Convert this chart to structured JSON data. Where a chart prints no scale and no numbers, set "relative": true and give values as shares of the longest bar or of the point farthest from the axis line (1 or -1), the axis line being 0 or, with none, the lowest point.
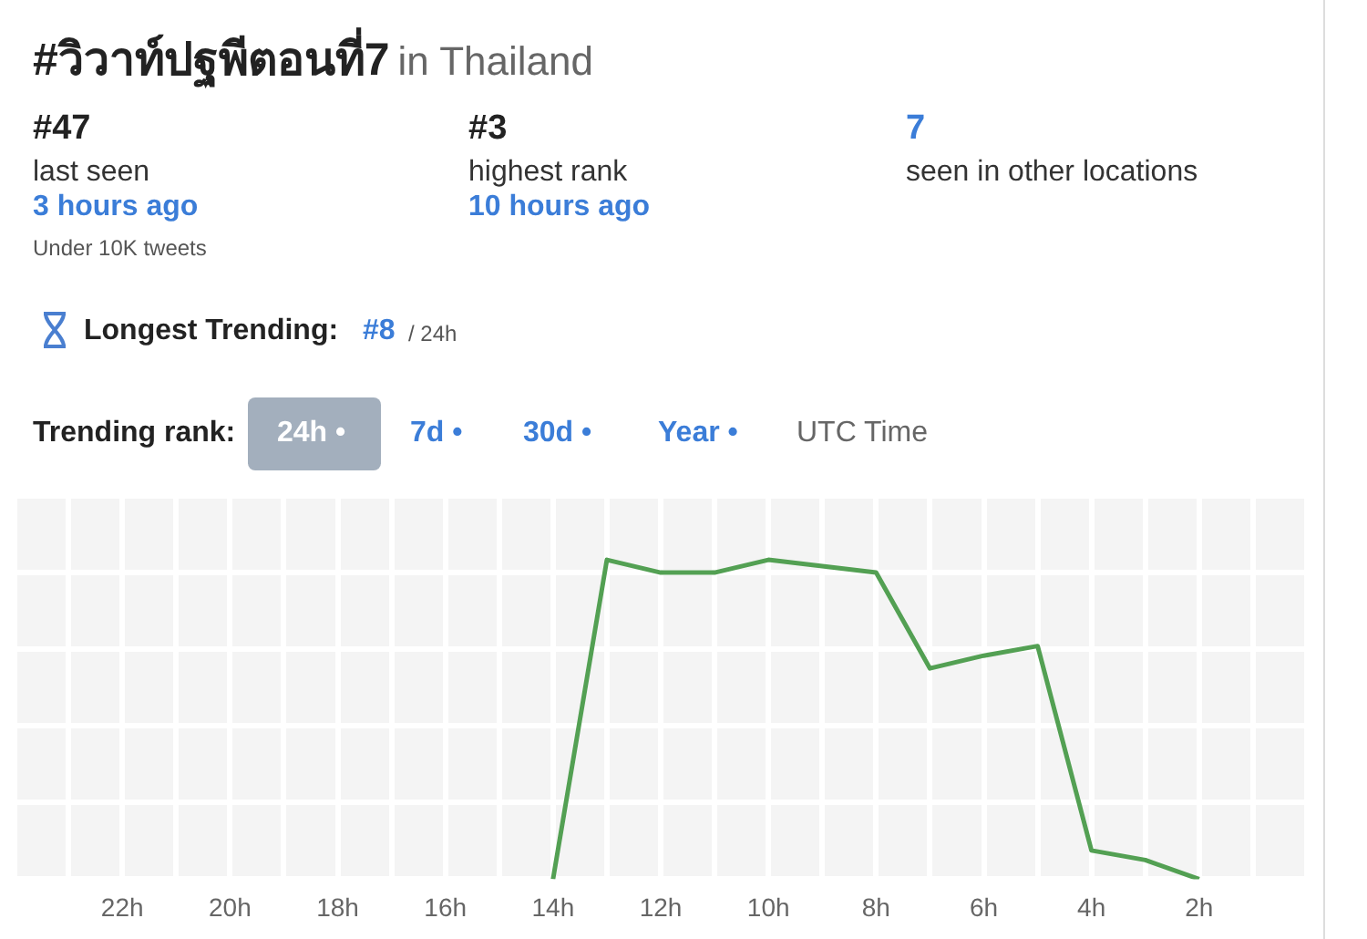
{
  "chart_data": {
    "type": "line",
    "title": "#วิวาท์ปฐพีตอนที่7",
    "subtitle": "in Thailand",
    "annotations": [
      "#47",
      "last seen",
      "3 hours ago",
      "Under 10K tweets",
      "#3",
      "highest rank",
      "10 hours ago",
      "7",
      "seen in other locations",
      "Longest Trending:",
      "#8",
      "/ 24h",
      "Trending rank:",
      "24h •",
      "7d •",
      "30d •",
      "Year •",
      "UTC Time"
    ],
    "categories": [
      null,
      null,
      "22h",
      null,
      "20h",
      null,
      "18h",
      null,
      "16h",
      null,
      "14h",
      null,
      "12h",
      null,
      "10h",
      null,
      "8h",
      null,
      "6h",
      null,
      "4h",
      null,
      "2h",
      null,
      null
    ],
    "relative": true,
    "series": [
      {
        "color": "#53a053",
        "values": [
          null,
          null,
          null,
          null,
          null,
          null,
          null,
          null,
          null,
          null,
          0,
          1,
          0.96,
          0.96,
          1,
          0.98,
          0.96,
          0.66,
          0.7,
          0.73,
          0.09,
          0.06,
          0,
          null,
          null
        ]
      }
    ],
    "grid": true,
    "legend": false,
    "marker": "none",
    "line_style": "solid"
  }
}
